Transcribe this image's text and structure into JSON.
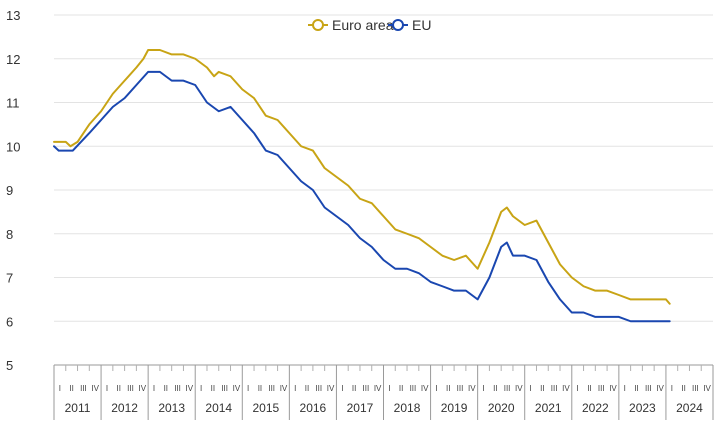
{
  "chart_data": {
    "type": "line",
    "x_unit": "year",
    "y_ticks": [
      "5",
      "6",
      "7",
      "8",
      "9",
      "10",
      "11",
      "12",
      "13"
    ],
    "ylim": [
      5,
      13
    ],
    "quarter_labels": [
      "I",
      "II",
      "III",
      "IV"
    ],
    "years": [
      "2011",
      "2012",
      "2013",
      "2014",
      "2015",
      "2016",
      "2017",
      "2018",
      "2019",
      "2020",
      "2021",
      "2022",
      "2023",
      "2024"
    ],
    "grid": true,
    "legend_position": "top-center",
    "series": [
      {
        "name": "Euro area",
        "color": "#c8a415",
        "points": [
          [
            2011.0,
            10.1
          ],
          [
            2011.25,
            10.1
          ],
          [
            2011.35,
            10.0
          ],
          [
            2011.5,
            10.1
          ],
          [
            2011.75,
            10.5
          ],
          [
            2012.0,
            10.8
          ],
          [
            2012.25,
            11.2
          ],
          [
            2012.5,
            11.5
          ],
          [
            2012.75,
            11.8
          ],
          [
            2012.9,
            12.0
          ],
          [
            2013.0,
            12.2
          ],
          [
            2013.25,
            12.2
          ],
          [
            2013.5,
            12.1
          ],
          [
            2013.75,
            12.1
          ],
          [
            2014.0,
            12.0
          ],
          [
            2014.25,
            11.8
          ],
          [
            2014.4,
            11.6
          ],
          [
            2014.5,
            11.7
          ],
          [
            2014.75,
            11.6
          ],
          [
            2015.0,
            11.3
          ],
          [
            2015.25,
            11.1
          ],
          [
            2015.5,
            10.7
          ],
          [
            2015.75,
            10.6
          ],
          [
            2016.0,
            10.3
          ],
          [
            2016.25,
            10.0
          ],
          [
            2016.5,
            9.9
          ],
          [
            2016.75,
            9.5
          ],
          [
            2017.0,
            9.3
          ],
          [
            2017.25,
            9.1
          ],
          [
            2017.5,
            8.8
          ],
          [
            2017.75,
            8.7
          ],
          [
            2018.0,
            8.4
          ],
          [
            2018.25,
            8.1
          ],
          [
            2018.5,
            8.0
          ],
          [
            2018.75,
            7.9
          ],
          [
            2019.0,
            7.7
          ],
          [
            2019.25,
            7.5
          ],
          [
            2019.5,
            7.4
          ],
          [
            2019.75,
            7.5
          ],
          [
            2020.0,
            7.2
          ],
          [
            2020.25,
            7.8
          ],
          [
            2020.5,
            8.5
          ],
          [
            2020.62,
            8.6
          ],
          [
            2020.75,
            8.4
          ],
          [
            2021.0,
            8.2
          ],
          [
            2021.25,
            8.3
          ],
          [
            2021.5,
            7.8
          ],
          [
            2021.75,
            7.3
          ],
          [
            2022.0,
            7.0
          ],
          [
            2022.25,
            6.8
          ],
          [
            2022.5,
            6.7
          ],
          [
            2022.75,
            6.7
          ],
          [
            2023.0,
            6.6
          ],
          [
            2023.25,
            6.5
          ],
          [
            2023.5,
            6.5
          ],
          [
            2023.75,
            6.5
          ],
          [
            2024.0,
            6.5
          ],
          [
            2024.08,
            6.4
          ]
        ]
      },
      {
        "name": "EU",
        "color": "#1a47b0",
        "points": [
          [
            2011.0,
            10.0
          ],
          [
            2011.1,
            9.9
          ],
          [
            2011.4,
            9.9
          ],
          [
            2011.75,
            10.3
          ],
          [
            2012.0,
            10.6
          ],
          [
            2012.25,
            10.9
          ],
          [
            2012.5,
            11.1
          ],
          [
            2012.75,
            11.4
          ],
          [
            2013.0,
            11.7
          ],
          [
            2013.25,
            11.7
          ],
          [
            2013.5,
            11.5
          ],
          [
            2013.75,
            11.5
          ],
          [
            2014.0,
            11.4
          ],
          [
            2014.25,
            11.0
          ],
          [
            2014.5,
            10.8
          ],
          [
            2014.75,
            10.9
          ],
          [
            2015.0,
            10.6
          ],
          [
            2015.25,
            10.3
          ],
          [
            2015.5,
            9.9
          ],
          [
            2015.75,
            9.8
          ],
          [
            2016.0,
            9.5
          ],
          [
            2016.25,
            9.2
          ],
          [
            2016.5,
            9.0
          ],
          [
            2016.75,
            8.6
          ],
          [
            2017.0,
            8.4
          ],
          [
            2017.25,
            8.2
          ],
          [
            2017.5,
            7.9
          ],
          [
            2017.75,
            7.7
          ],
          [
            2018.0,
            7.4
          ],
          [
            2018.25,
            7.2
          ],
          [
            2018.5,
            7.2
          ],
          [
            2018.75,
            7.1
          ],
          [
            2019.0,
            6.9
          ],
          [
            2019.25,
            6.8
          ],
          [
            2019.5,
            6.7
          ],
          [
            2019.75,
            6.7
          ],
          [
            2020.0,
            6.5
          ],
          [
            2020.25,
            7.0
          ],
          [
            2020.5,
            7.7
          ],
          [
            2020.62,
            7.8
          ],
          [
            2020.75,
            7.5
          ],
          [
            2021.0,
            7.5
          ],
          [
            2021.25,
            7.4
          ],
          [
            2021.5,
            6.9
          ],
          [
            2021.75,
            6.5
          ],
          [
            2022.0,
            6.2
          ],
          [
            2022.25,
            6.2
          ],
          [
            2022.5,
            6.1
          ],
          [
            2022.75,
            6.1
          ],
          [
            2023.0,
            6.1
          ],
          [
            2023.25,
            6.0
          ],
          [
            2023.5,
            6.0
          ],
          [
            2023.75,
            6.0
          ],
          [
            2024.0,
            6.0
          ],
          [
            2024.08,
            6.0
          ]
        ]
      }
    ]
  }
}
